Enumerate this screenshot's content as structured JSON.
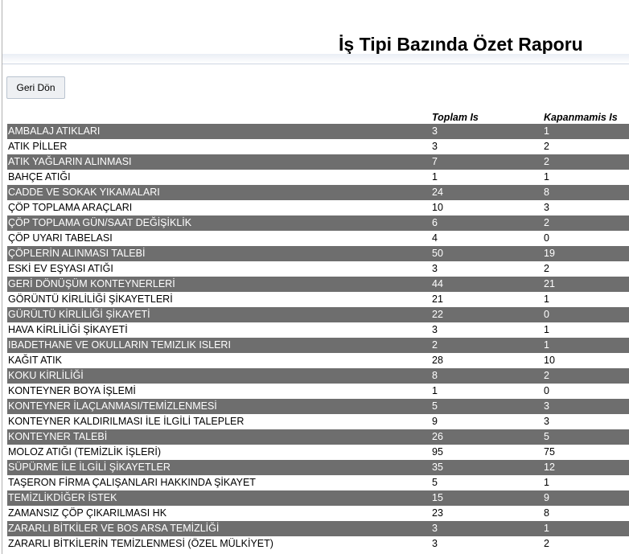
{
  "page": {
    "title": "İş Tipi Bazında Özet Raporu",
    "back_button_label": "Geri Dön"
  },
  "table": {
    "headers": {
      "type": "",
      "total": "Toplam Is",
      "open": "Kapanmamis Is"
    },
    "rows": [
      {
        "type": "AMBALAJ ATIKLARI",
        "total": "3",
        "open": "1"
      },
      {
        "type": "ATIK PİLLER",
        "total": "3",
        "open": "2"
      },
      {
        "type": "ATIK YAĞLARIN ALINMASI",
        "total": "7",
        "open": "2"
      },
      {
        "type": "BAHÇE ATIĞI",
        "total": "1",
        "open": "1"
      },
      {
        "type": "CADDE VE SOKAK YIKAMALARI",
        "total": "24",
        "open": "8"
      },
      {
        "type": "ÇÖP TOPLAMA ARAÇLARI",
        "total": "10",
        "open": "3"
      },
      {
        "type": "ÇÖP TOPLAMA GÜN/SAAT DEĞİŞİKLİK",
        "total": "6",
        "open": "2"
      },
      {
        "type": "ÇÖP UYARI TABELASI",
        "total": "4",
        "open": "0"
      },
      {
        "type": "ÇÖPLERİN ALINMASI TALEBİ",
        "total": "50",
        "open": "19"
      },
      {
        "type": "ESKİ EV EŞYASI ATIĞI",
        "total": "3",
        "open": "2"
      },
      {
        "type": "GERİ DÖNÜŞÜM KONTEYNERLERİ",
        "total": "44",
        "open": "21"
      },
      {
        "type": "GÖRÜNTÜ KİRLİLİĞİ ŞİKAYETLERİ",
        "total": "21",
        "open": "1"
      },
      {
        "type": "GÜRÜLTÜ KİRLİLİĞİ ŞİKAYETİ",
        "total": "22",
        "open": "0"
      },
      {
        "type": "HAVA KİRLİLİĞİ ŞİKAYETİ",
        "total": "3",
        "open": "1"
      },
      {
        "type": "IBADETHANE VE OKULLARIN TEMIZLIK ISLERI",
        "total": "2",
        "open": "1"
      },
      {
        "type": "KAĞIT ATIK",
        "total": "28",
        "open": "10"
      },
      {
        "type": "KOKU KİRLİLİĞİ",
        "total": "8",
        "open": "2"
      },
      {
        "type": "KONTEYNER BOYA İŞLEMİ",
        "total": "1",
        "open": "0"
      },
      {
        "type": "KONTEYNER İLAÇLANMASI/TEMİZLENMESİ",
        "total": "5",
        "open": "3"
      },
      {
        "type": "KONTEYNER KALDIRILMASI İLE İLGİLİ TALEPLER",
        "total": "9",
        "open": "3"
      },
      {
        "type": "KONTEYNER TALEBİ",
        "total": "26",
        "open": "5"
      },
      {
        "type": "MOLOZ ATIĞI (TEMİZLİK İŞLERİ)",
        "total": "95",
        "open": "75"
      },
      {
        "type": "SÜPÜRME İLE İLGİLİ ŞİKAYETLER",
        "total": "35",
        "open": "12"
      },
      {
        "type": "TAŞERON FİRMA ÇALIŞANLARI HAKKINDA ŞİKAYET",
        "total": "5",
        "open": "1"
      },
      {
        "type": "TEMİZLİKDİĞER İSTEK",
        "total": "15",
        "open": "9"
      },
      {
        "type": "ZAMANSIZ ÇÖP ÇIKARILMASI HK",
        "total": "23",
        "open": "8"
      },
      {
        "type": "ZARARLI BİTKİLER VE BOS ARSA TEMİZLİĞİ",
        "total": "3",
        "open": "1"
      },
      {
        "type": "ZARARLI BİTKİLERİN TEMİZLENMESİ (ÖZEL MÜLKİYET)",
        "total": "3",
        "open": "2"
      }
    ]
  }
}
